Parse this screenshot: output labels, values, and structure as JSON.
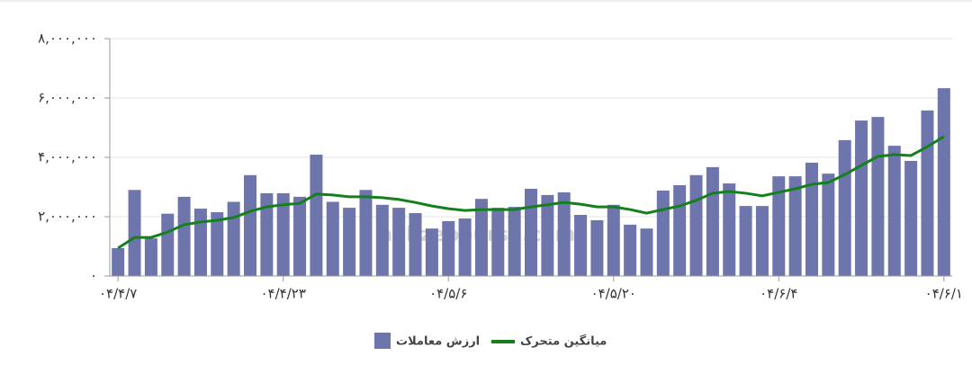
{
  "chart_data": {
    "type": "bar",
    "watermark": "nabzebourse.com",
    "categories": [
      "۰۴/۴/۷",
      null,
      null,
      null,
      null,
      null,
      null,
      null,
      null,
      null,
      "۰۴/۴/۲۳",
      null,
      null,
      null,
      null,
      null,
      null,
      null,
      null,
      null,
      "۰۴/۵/۶",
      null,
      null,
      null,
      null,
      null,
      null,
      null,
      null,
      null,
      "۰۴/۵/۲۰",
      null,
      null,
      null,
      null,
      null,
      null,
      null,
      null,
      null,
      "۰۴/۶/۴",
      null,
      null,
      null,
      null,
      null,
      null,
      null,
      null,
      null,
      "۰۴/۶/۱"
    ],
    "series": [
      {
        "name": "ارزش معاملات",
        "color": "#6e75ac",
        "type": "bar",
        "values": [
          940000,
          2900000,
          1270000,
          2100000,
          2670000,
          2270000,
          2150000,
          2500000,
          3400000,
          2790000,
          2790000,
          2670000,
          4090000,
          2500000,
          2300000,
          2900000,
          2400000,
          2300000,
          2120000,
          1600000,
          1850000,
          1940000,
          2600000,
          2300000,
          2330000,
          2940000,
          2730000,
          2820000,
          2060000,
          1880000,
          2400000,
          1730000,
          1600000,
          2880000,
          3060000,
          3400000,
          3670000,
          3120000,
          2360000,
          2360000,
          3360000,
          3360000,
          3820000,
          3450000,
          4580000,
          5240000,
          5360000,
          4390000,
          3880000,
          5580000,
          6330000
        ]
      },
      {
        "name": "میانگین متحرک",
        "color": "#13801b",
        "type": "line",
        "values": [
          940000,
          1300000,
          1300000,
          1480000,
          1730000,
          1820000,
          1880000,
          1970000,
          2180000,
          2330000,
          2400000,
          2450000,
          2760000,
          2730000,
          2670000,
          2670000,
          2640000,
          2580000,
          2480000,
          2360000,
          2270000,
          2210000,
          2240000,
          2240000,
          2240000,
          2330000,
          2400000,
          2480000,
          2420000,
          2330000,
          2330000,
          2240000,
          2120000,
          2240000,
          2360000,
          2550000,
          2790000,
          2850000,
          2790000,
          2700000,
          2820000,
          2940000,
          3090000,
          3150000,
          3420000,
          3730000,
          4030000,
          4090000,
          4060000,
          4360000,
          4700000
        ]
      }
    ],
    "ylim": [
      0,
      8000000
    ],
    "yticks": [
      {
        "value": 0,
        "label": "۰"
      },
      {
        "value": 2000000,
        "label": "۲,۰۰۰,۰۰۰"
      },
      {
        "value": 4000000,
        "label": "۴,۰۰۰,۰۰۰"
      },
      {
        "value": 6000000,
        "label": "۶,۰۰۰,۰۰۰"
      },
      {
        "value": 8000000,
        "label": "۸,۰۰۰,۰۰۰"
      }
    ],
    "grid": true
  }
}
